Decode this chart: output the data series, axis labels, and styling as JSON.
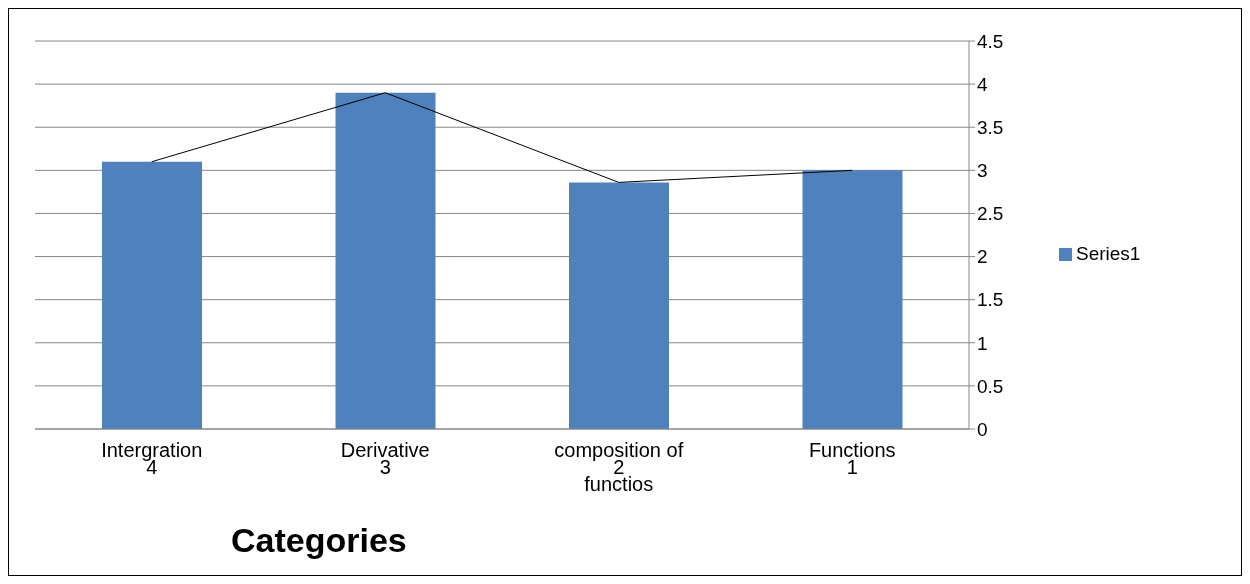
{
  "chart_data": {
    "type": "bar",
    "xlabel": "Categories",
    "categories": [
      "Intergration\n4",
      "Derivative\n3",
      "composition of\n2\nfunctios",
      "Functions\n1"
    ],
    "series": [
      {
        "name": "Series1",
        "color": "#4f81bd",
        "values": [
          3.1,
          3.9,
          2.86,
          3.0
        ]
      },
      {
        "type": "line",
        "color": "#000000",
        "values": [
          3.1,
          3.9,
          2.86,
          3.0
        ]
      }
    ],
    "ylim": [
      0,
      4.5
    ],
    "yticks": [
      0,
      0.5,
      1,
      1.5,
      2,
      2.5,
      3,
      3.5,
      4,
      4.5
    ],
    "grid": "y",
    "legend": "right",
    "marker": "none",
    "line_style": "solid"
  }
}
